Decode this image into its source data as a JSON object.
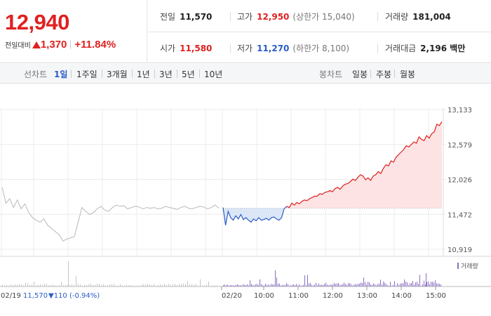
{
  "summary": {
    "price": "12,940",
    "change_label": "전일대비",
    "change_amount": "1,370",
    "change_percent": "+11.84%",
    "prev_close_label": "전일",
    "prev_close": "11,570",
    "high_label": "고가",
    "high": "12,950",
    "upper_limit": "(상한가 15,040)",
    "volume_label": "거래량",
    "volume": "181,004",
    "open_label": "시가",
    "open": "11,580",
    "low_label": "저가",
    "low": "11,270",
    "lower_limit": "(하한가 8,100)",
    "trade_value_label": "거래대금",
    "trade_value": "2,196 백만"
  },
  "tabs": {
    "line_label": "선차트",
    "line_items": [
      "1일",
      "1주일",
      "3개월",
      "1년",
      "3년",
      "5년",
      "10년"
    ],
    "line_active": "1일",
    "candle_label": "봉차트",
    "candle_items": [
      "일봉",
      "주봉",
      "월봉"
    ]
  },
  "colors": {
    "up": "#e02020",
    "down": "#2a5cc7",
    "prev_day_line": "#b8b8b8",
    "volume_bar": "#8a6fc4"
  },
  "chart_data": {
    "type": "line",
    "y_ticks": [
      "13,133",
      "12,579",
      "12,026",
      "11,472",
      "10,919"
    ],
    "ylim": [
      10919,
      13133
    ],
    "x_ticks": [
      "02/19",
      "02/20",
      "10:00",
      "11:00",
      "12:00",
      "13:00",
      "14:00",
      "15:00"
    ],
    "reference_price": 11570,
    "prev_day_info": {
      "date": "02/19",
      "close": "11,570",
      "change": "110",
      "percent": "(-0.94%)"
    },
    "volume_legend": "거래량",
    "prev_day_series": [
      11900,
      11650,
      11720,
      11580,
      11700,
      11560,
      11640,
      11500,
      11420,
      11380,
      11350,
      11400,
      11300,
      11250,
      11200,
      11150,
      11050,
      11080,
      11100,
      11120,
      11350,
      11580,
      11520,
      11470,
      11500,
      11560,
      11600,
      11540,
      11520,
      11580,
      11620,
      11600,
      11610,
      11560,
      11580,
      11600,
      11590,
      11560,
      11580,
      11570,
      11580,
      11560,
      11570,
      11600,
      11580,
      11570,
      11550,
      11580,
      11600,
      11570,
      11560,
      11580,
      11600,
      11590,
      11560,
      11580,
      11620,
      11570
    ],
    "today_series": [
      11580,
      11300,
      11520,
      11420,
      11380,
      11450,
      11400,
      11470,
      11390,
      11420,
      11380,
      11350,
      11400,
      11370,
      11420,
      11380,
      11390,
      11410,
      11380,
      11420,
      11430,
      11400,
      11380,
      11420,
      11560,
      11600,
      11580,
      11650,
      11620,
      11660,
      11640,
      11680,
      11700,
      11690,
      11720,
      11740,
      11760,
      11760,
      11800,
      11790,
      11820,
      11830,
      11850,
      11830,
      11880,
      11900,
      11870,
      11920,
      11950,
      11960,
      11990,
      12030,
      12010,
      12060,
      12100,
      12080,
      12020,
      12050,
      12010,
      12080,
      12100,
      12150,
      12120,
      12200,
      12260,
      12240,
      12320,
      12300,
      12380,
      12420,
      12460,
      12500,
      12560,
      12540,
      12580,
      12620,
      12600,
      12700,
      12660,
      12640,
      12720,
      12680,
      12750,
      12780,
      12900,
      12880,
      12940
    ]
  }
}
